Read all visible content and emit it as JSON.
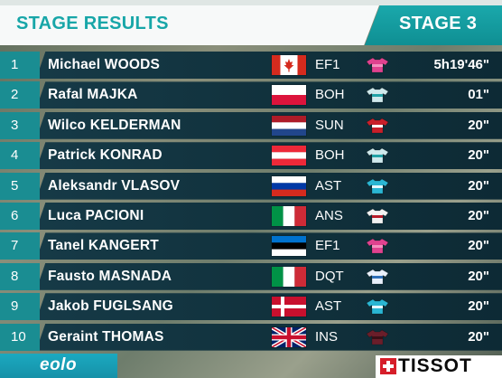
{
  "header": {
    "title": "STAGE RESULTS",
    "stage": "STAGE 3"
  },
  "colors": {
    "accent": "#17a6a8",
    "row_bg": "#12333f",
    "position_bg": "#1a8d92"
  },
  "results": [
    {
      "position": "1",
      "name": "Michael WOODS",
      "flag": "canada",
      "team": "EF1",
      "jersey": "pink-jersey-icon",
      "time": "5h19'46\""
    },
    {
      "position": "2",
      "name": "Rafal MAJKA",
      "flag": "poland",
      "team": "BOH",
      "jersey": "teal-jersey-icon",
      "time": "01\""
    },
    {
      "position": "3",
      "name": "Wilco KELDERMAN",
      "flag": "netherlands",
      "team": "SUN",
      "jersey": "red-jersey-icon",
      "time": "20\""
    },
    {
      "position": "4",
      "name": "Patrick KONRAD",
      "flag": "austria",
      "team": "BOH",
      "jersey": "teal-jersey-icon",
      "time": "20\""
    },
    {
      "position": "5",
      "name": "Aleksandr VLASOV",
      "flag": "russia",
      "team": "AST",
      "jersey": "cyan-jersey-icon",
      "time": "20\""
    },
    {
      "position": "6",
      "name": "Luca PACIONI",
      "flag": "italy",
      "team": "ANS",
      "jersey": "red-white-jersey-icon",
      "time": "20\""
    },
    {
      "position": "7",
      "name": "Tanel KANGERT",
      "flag": "estonia",
      "team": "EF1",
      "jersey": "pink-jersey-icon",
      "time": "20\""
    },
    {
      "position": "8",
      "name": "Fausto MASNADA",
      "flag": "italy",
      "team": "DQT",
      "jersey": "blue-white-jersey-icon",
      "time": "20\""
    },
    {
      "position": "9",
      "name": "Jakob FUGLSANG",
      "flag": "denmark",
      "team": "AST",
      "jersey": "cyan-jersey-icon",
      "time": "20\""
    },
    {
      "position": "10",
      "name": "Geraint THOMAS",
      "flag": "uk",
      "team": "INS",
      "jersey": "maroon-jersey-icon",
      "time": "20\""
    }
  ],
  "footer": {
    "left_logo": "eolo",
    "right_logo": "TISSOT"
  }
}
